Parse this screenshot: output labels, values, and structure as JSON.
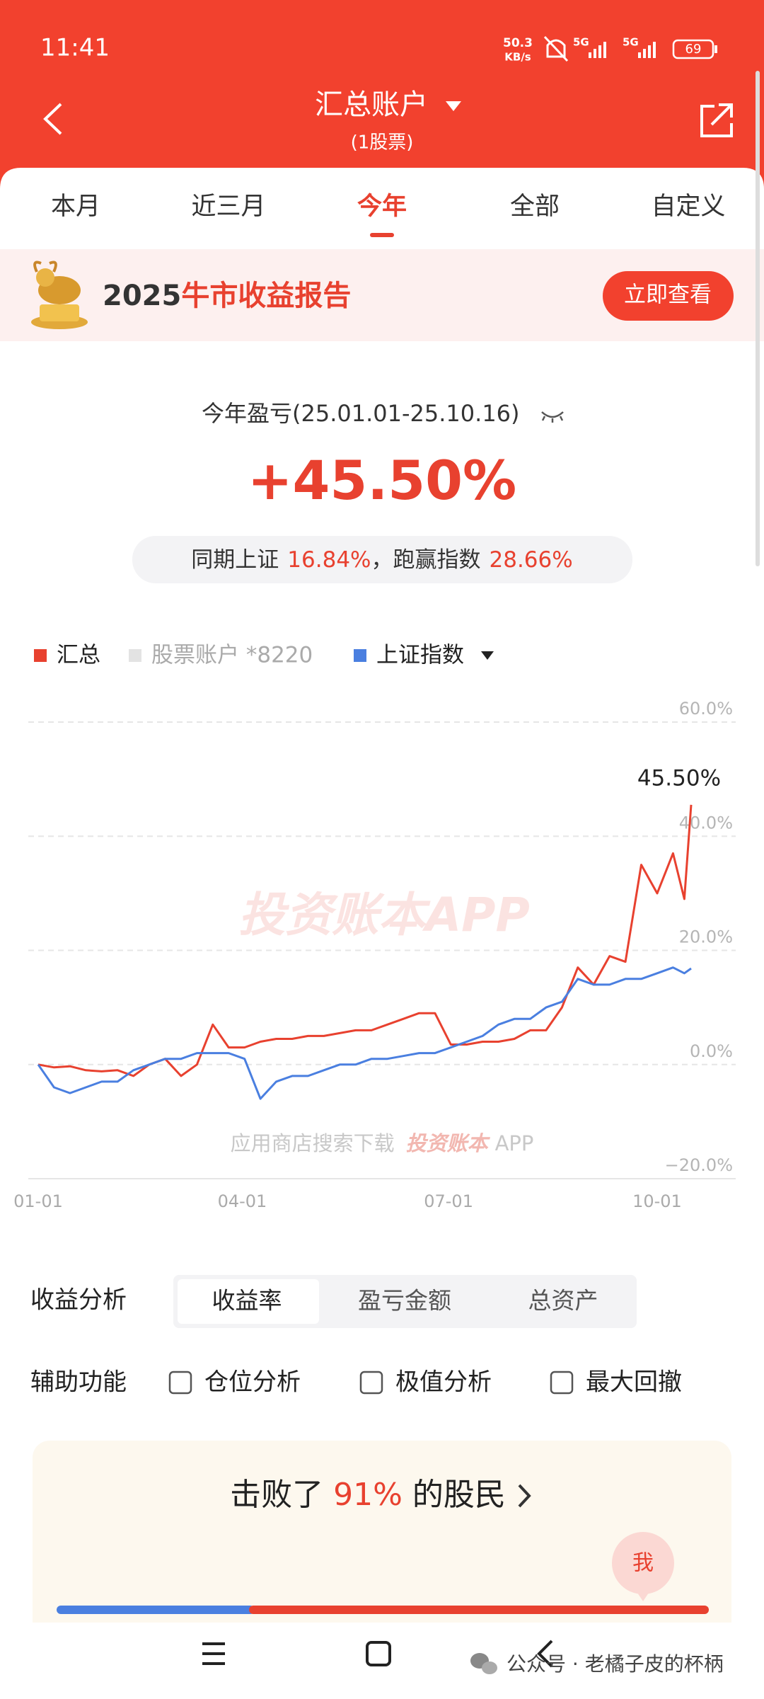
{
  "status_bar": {
    "time": "11:41",
    "speed": "50.3",
    "speed_unit": "KB/s",
    "network_1": "5G",
    "network_2": "5G",
    "battery": "69"
  },
  "header": {
    "title": "汇总账户",
    "subtitle": "(1股票)"
  },
  "tabs": [
    {
      "label": "本月",
      "selected": false
    },
    {
      "label": "近三月",
      "selected": false
    },
    {
      "label": "今年",
      "selected": true
    },
    {
      "label": "全部",
      "selected": false
    },
    {
      "label": "自定义",
      "selected": false
    }
  ],
  "banner": {
    "year": "2025",
    "title": "牛市收益报告",
    "button": "立即查看"
  },
  "summary": {
    "label": "今年盈亏(25.01.01-25.10.16)",
    "value": "+45.50%",
    "compare_prefix": "同期上证",
    "index_return": "16.84%",
    "compare_mid": "，跑赢指数",
    "excess": "28.66%"
  },
  "chart_data": {
    "type": "line",
    "x": [
      "01-01",
      "01-08",
      "01-15",
      "01-22",
      "01-29",
      "02-05",
      "02-12",
      "02-19",
      "02-26",
      "03-05",
      "03-12",
      "03-19",
      "03-26",
      "04-02",
      "04-09",
      "04-16",
      "04-23",
      "04-30",
      "05-07",
      "05-14",
      "05-21",
      "05-28",
      "06-04",
      "06-11",
      "06-18",
      "06-25",
      "07-02",
      "07-09",
      "07-16",
      "07-23",
      "07-30",
      "08-06",
      "08-13",
      "08-20",
      "08-27",
      "09-03",
      "09-10",
      "09-17",
      "09-24",
      "10-01",
      "10-08",
      "10-13",
      "10-16"
    ],
    "series": [
      {
        "name": "汇总",
        "color": "#e8412f",
        "values": [
          0,
          -0.5,
          -0.3,
          -1,
          -1.2,
          -1,
          -2,
          0,
          1,
          -2,
          0,
          7,
          3,
          3,
          4,
          4.5,
          4.5,
          5,
          5,
          5.5,
          6,
          6,
          7,
          8,
          9,
          9,
          3.5,
          3.5,
          4,
          4,
          4.5,
          6,
          6,
          10,
          17,
          14,
          19,
          18,
          35,
          30,
          37,
          29,
          45.5
        ]
      },
      {
        "name": "股票账户 *8220",
        "color": "#e3e3e3",
        "values": null
      },
      {
        "name": "上证指数",
        "color": "#4a7fe0",
        "values": [
          0,
          -4,
          -5,
          -4,
          -3,
          -3,
          -1,
          0,
          1,
          1,
          2,
          2,
          2,
          1,
          -6,
          -3,
          -2,
          -2,
          -1,
          0,
          0,
          1,
          1,
          1.5,
          2,
          2,
          3,
          4,
          5,
          7,
          8,
          8,
          10,
          11,
          15,
          14,
          14,
          15,
          15,
          16,
          17,
          16,
          16.84
        ]
      }
    ],
    "annotation": "45.50%",
    "ylim": [
      -20,
      60
    ],
    "yticks": [
      {
        "value": -20,
        "label": "−20.0%"
      },
      {
        "value": 0,
        "label": "0.0%"
      },
      {
        "value": 20,
        "label": "20.0%"
      },
      {
        "value": 40,
        "label": "40.0%"
      },
      {
        "value": 60,
        "label": "60.0%"
      }
    ],
    "xticks": [
      "01-01",
      "04-01",
      "07-01",
      "10-01"
    ],
    "grid": true,
    "watermark": "投资账本APP",
    "watermark_hint": "应用商店搜索下载",
    "watermark_brand": "投资账本",
    "watermark_app": "APP"
  },
  "analysis": {
    "label": "收益分析",
    "options": [
      {
        "label": "收益率",
        "selected": true
      },
      {
        "label": "盈亏金额",
        "selected": false
      },
      {
        "label": "总资产",
        "selected": false
      }
    ]
  },
  "tools": {
    "label": "辅助功能",
    "options": [
      "仓位分析",
      "极值分析",
      "最大回撤"
    ]
  },
  "rank": {
    "prefix": "击败了",
    "percent": "91%",
    "suffix": "的股民",
    "me": "我"
  },
  "footer_watermark": "公众号 · 老橘子皮的杯柄"
}
